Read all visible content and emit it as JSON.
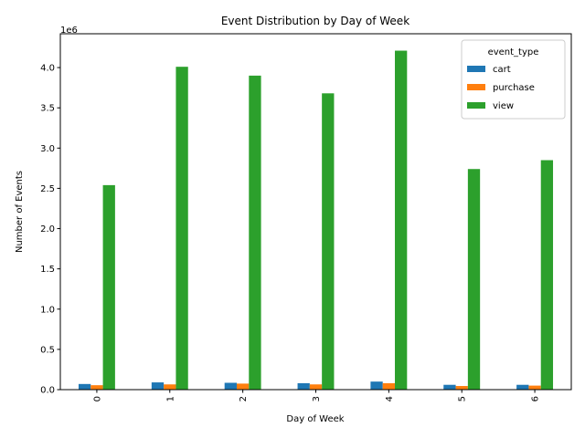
{
  "chart_data": {
    "type": "bar",
    "title": "Event Distribution by Day of Week",
    "xlabel": "Day of Week",
    "ylabel": "Number of Events",
    "y_offset_label": "1e6",
    "categories": [
      "0",
      "1",
      "2",
      "3",
      "4",
      "5",
      "6"
    ],
    "series": [
      {
        "name": "cart",
        "color": "#1f77b4",
        "values": [
          70000,
          90000,
          85000,
          80000,
          100000,
          60000,
          60000
        ]
      },
      {
        "name": "purchase",
        "color": "#ff7f0e",
        "values": [
          55000,
          65000,
          75000,
          65000,
          80000,
          45000,
          50000
        ]
      },
      {
        "name": "view",
        "color": "#2ca02c",
        "values": [
          2540000,
          4010000,
          3900000,
          3680000,
          4210000,
          2740000,
          2850000
        ]
      }
    ],
    "yticks": [
      0,
      500000,
      1000000,
      1500000,
      2000000,
      2500000,
      3000000,
      3500000,
      4000000
    ],
    "ytick_labels": [
      "0.0",
      "0.5",
      "1.0",
      "1.5",
      "2.0",
      "2.5",
      "3.0",
      "3.5",
      "4.0"
    ],
    "ylim": [
      0,
      4420000
    ],
    "grid": false,
    "legend": {
      "title": "event_type",
      "placement": "top-right"
    }
  }
}
